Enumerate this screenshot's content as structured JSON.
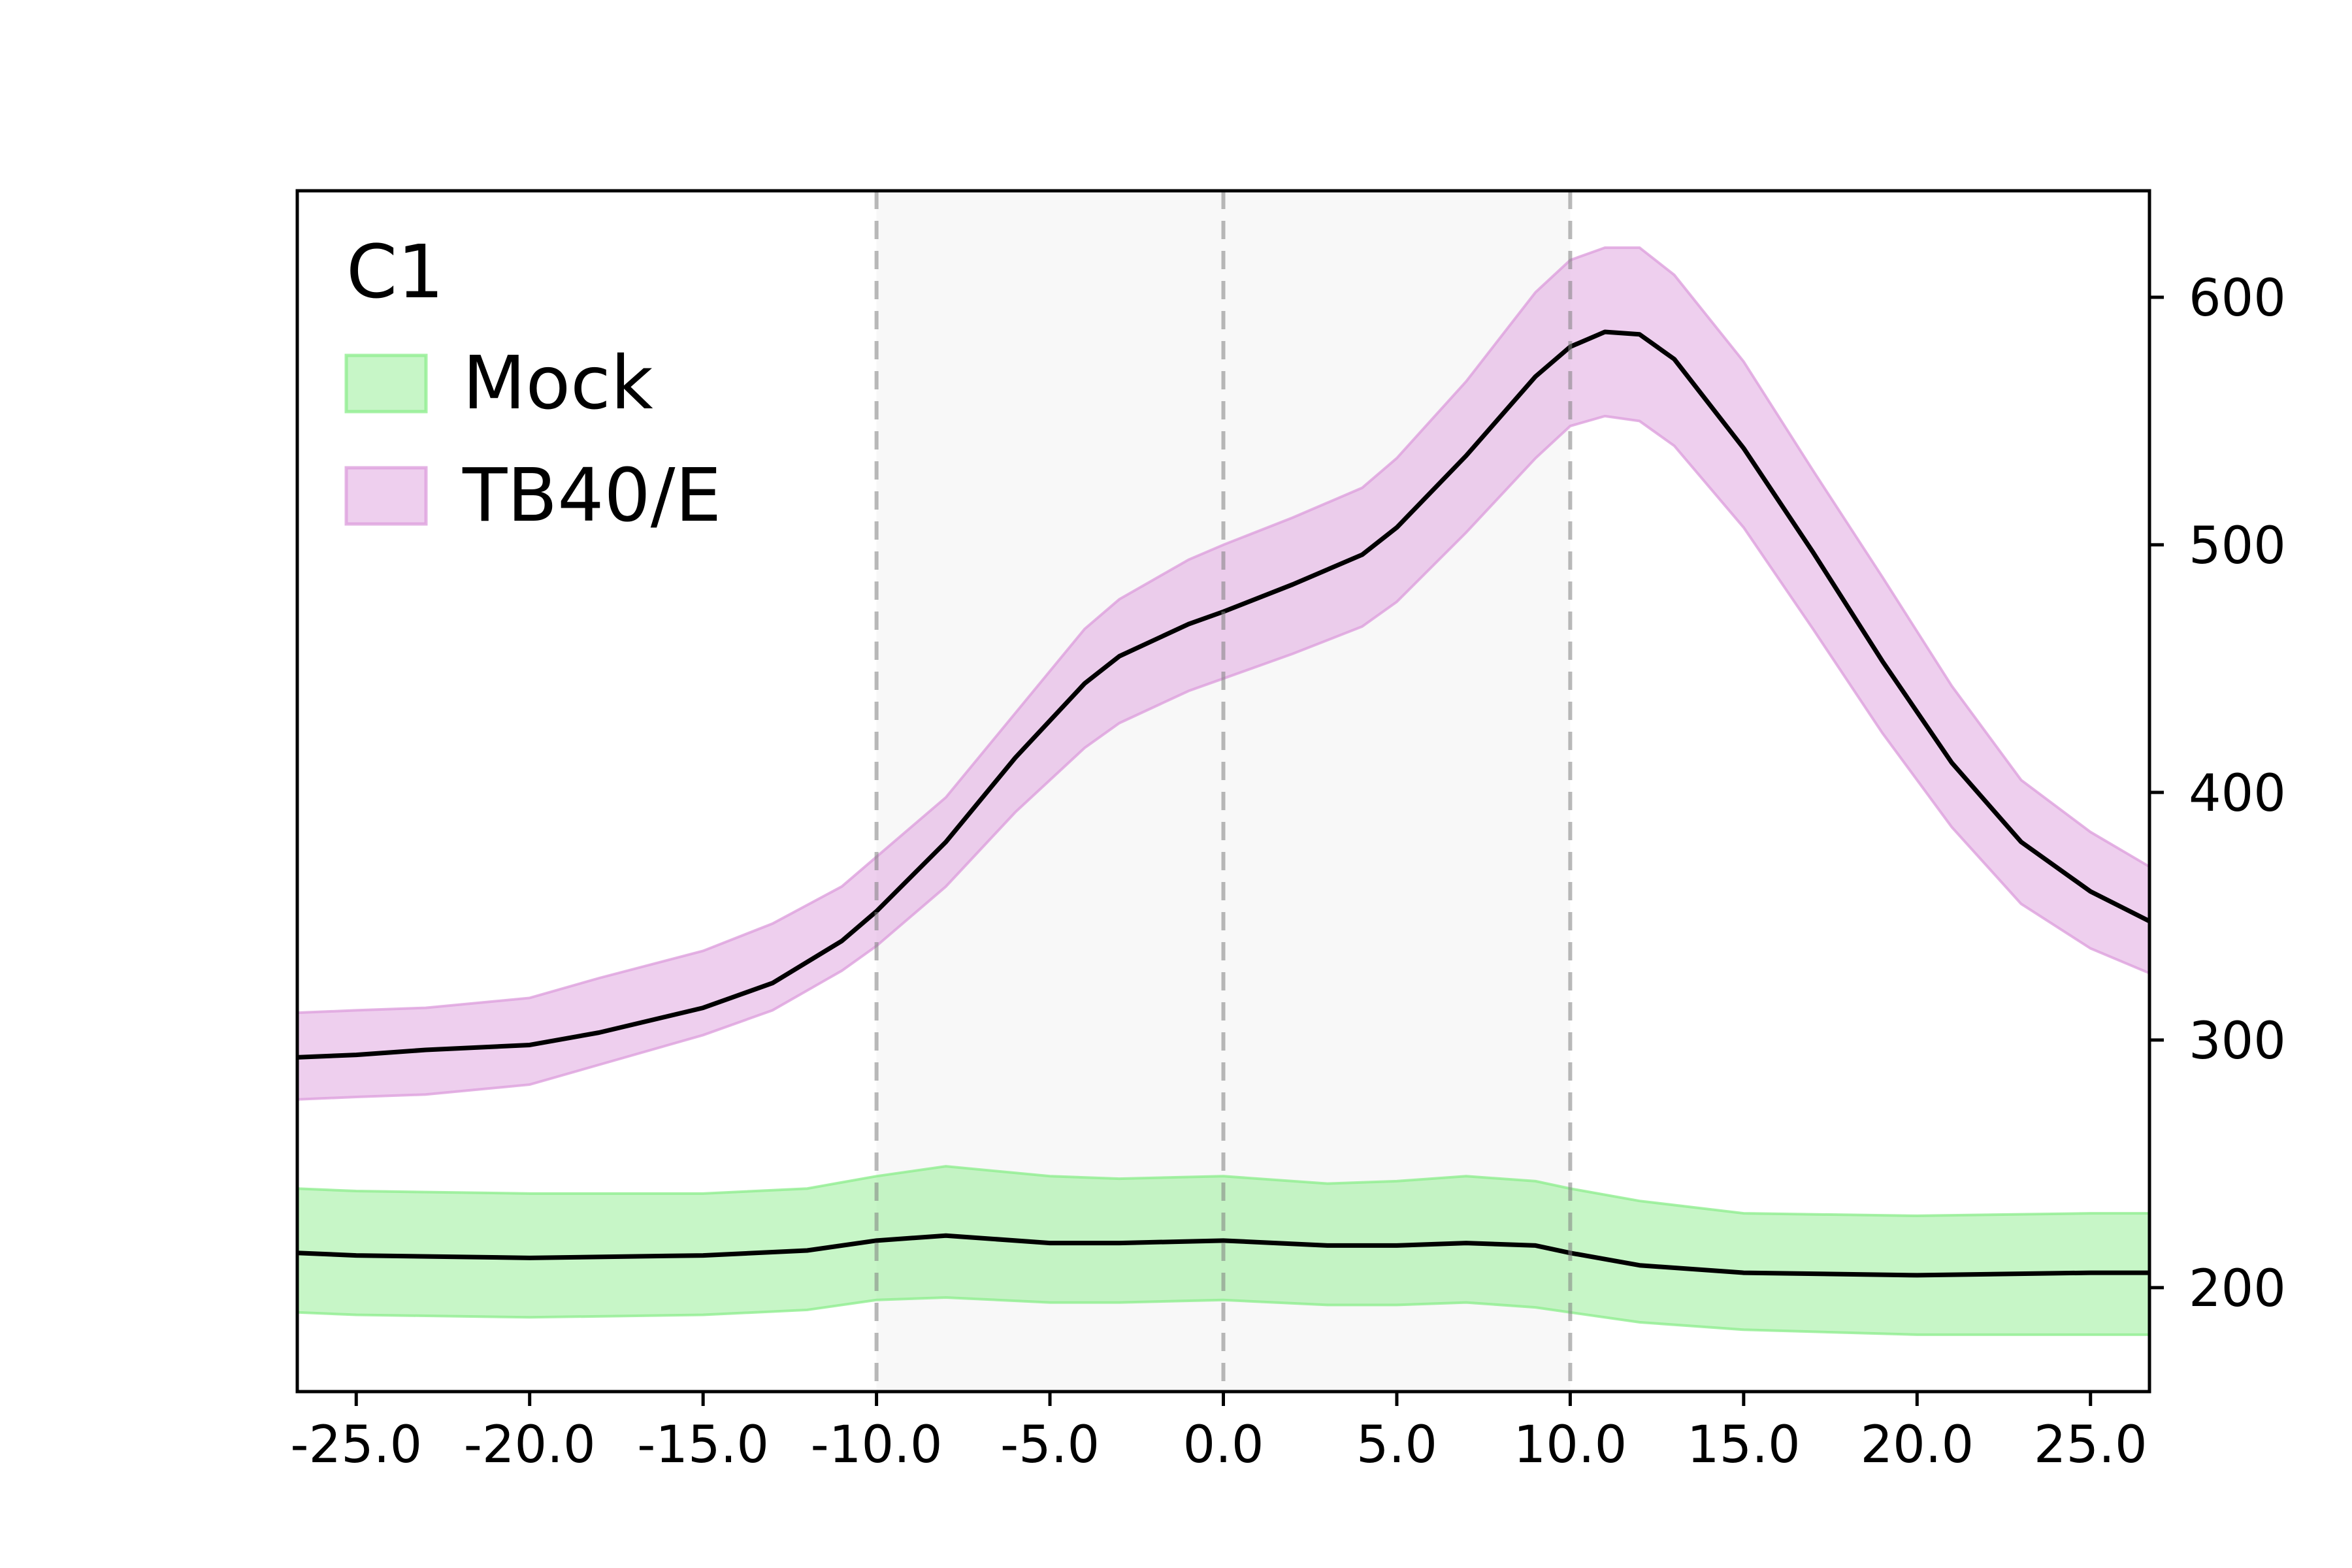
{
  "chart_data": {
    "type": "area",
    "title": "",
    "xlabel": "",
    "ylabel": "",
    "xlim": [
      -26.7,
      26.7
    ],
    "ylim": [
      158,
      643
    ],
    "x_ticks": [
      -25.0,
      -20.0,
      -15.0,
      -10.0,
      -5.0,
      0.0,
      5.0,
      10.0,
      15.0,
      20.0,
      25.0
    ],
    "x_tick_labels": [
      "-25.0",
      "-20.0",
      "-15.0",
      "-10.0",
      "-5.0",
      "0.0",
      "5.0",
      "10.0",
      "15.0",
      "20.0",
      "25.0"
    ],
    "y_ticks": [
      200,
      300,
      400,
      500,
      600
    ],
    "y_tick_labels": [
      "200",
      "300",
      "400",
      "500",
      "600"
    ],
    "y_axis_side": "right",
    "grid": false,
    "shaded_region": [
      -10,
      10
    ],
    "vertical_lines": [
      -10,
      0,
      10
    ],
    "legend": {
      "title": "C1",
      "placement": "top-left"
    },
    "series": [
      {
        "name": "Mock",
        "color": "#90ee90",
        "x": [
          -26.7,
          -25,
          -20,
          -15,
          -12,
          -10,
          -8,
          -5,
          -3,
          0,
          3,
          5,
          7,
          9,
          10,
          12,
          15,
          20,
          25,
          26.7
        ],
        "mean": [
          214,
          213,
          212,
          213,
          215,
          219,
          221,
          218,
          218,
          219,
          217,
          217,
          218,
          217,
          214,
          209,
          206,
          205,
          206,
          206
        ],
        "lower": [
          190,
          189,
          188,
          189,
          191,
          195,
          196,
          194,
          194,
          195,
          193,
          193,
          194,
          192,
          190,
          186,
          183,
          181,
          181,
          181
        ],
        "upper": [
          240,
          239,
          238,
          238,
          240,
          245,
          249,
          245,
          244,
          245,
          242,
          243,
          245,
          243,
          240,
          235,
          230,
          229,
          230,
          230
        ]
      },
      {
        "name": "TB40/E",
        "color": "#dda0dd",
        "x": [
          -26.7,
          -25,
          -23,
          -20,
          -18,
          -15,
          -13,
          -11,
          -10,
          -8,
          -6,
          -4,
          -3,
          -1,
          0,
          2,
          4,
          5,
          7,
          9,
          10,
          11,
          12,
          13,
          15,
          17,
          19,
          21,
          23,
          25,
          26.7
        ],
        "mean": [
          293,
          294,
          296,
          298,
          303,
          313,
          323,
          340,
          352,
          380,
          414,
          444,
          455,
          468,
          473,
          484,
          496,
          507,
          536,
          568,
          580,
          586,
          585,
          575,
          539,
          497,
          453,
          412,
          380,
          360,
          348
        ],
        "lower": [
          276,
          277,
          278,
          282,
          290,
          302,
          312,
          328,
          338,
          362,
          392,
          418,
          428,
          441,
          446,
          456,
          467,
          477,
          505,
          535,
          548,
          552,
          550,
          540,
          507,
          466,
          424,
          386,
          355,
          337,
          327
        ],
        "upper": [
          311,
          312,
          313,
          317,
          325,
          336,
          347,
          362,
          374,
          398,
          432,
          466,
          478,
          494,
          500,
          511,
          523,
          535,
          566,
          602,
          615,
          620,
          620,
          609,
          574,
          530,
          487,
          443,
          405,
          384,
          370
        ]
      }
    ]
  }
}
